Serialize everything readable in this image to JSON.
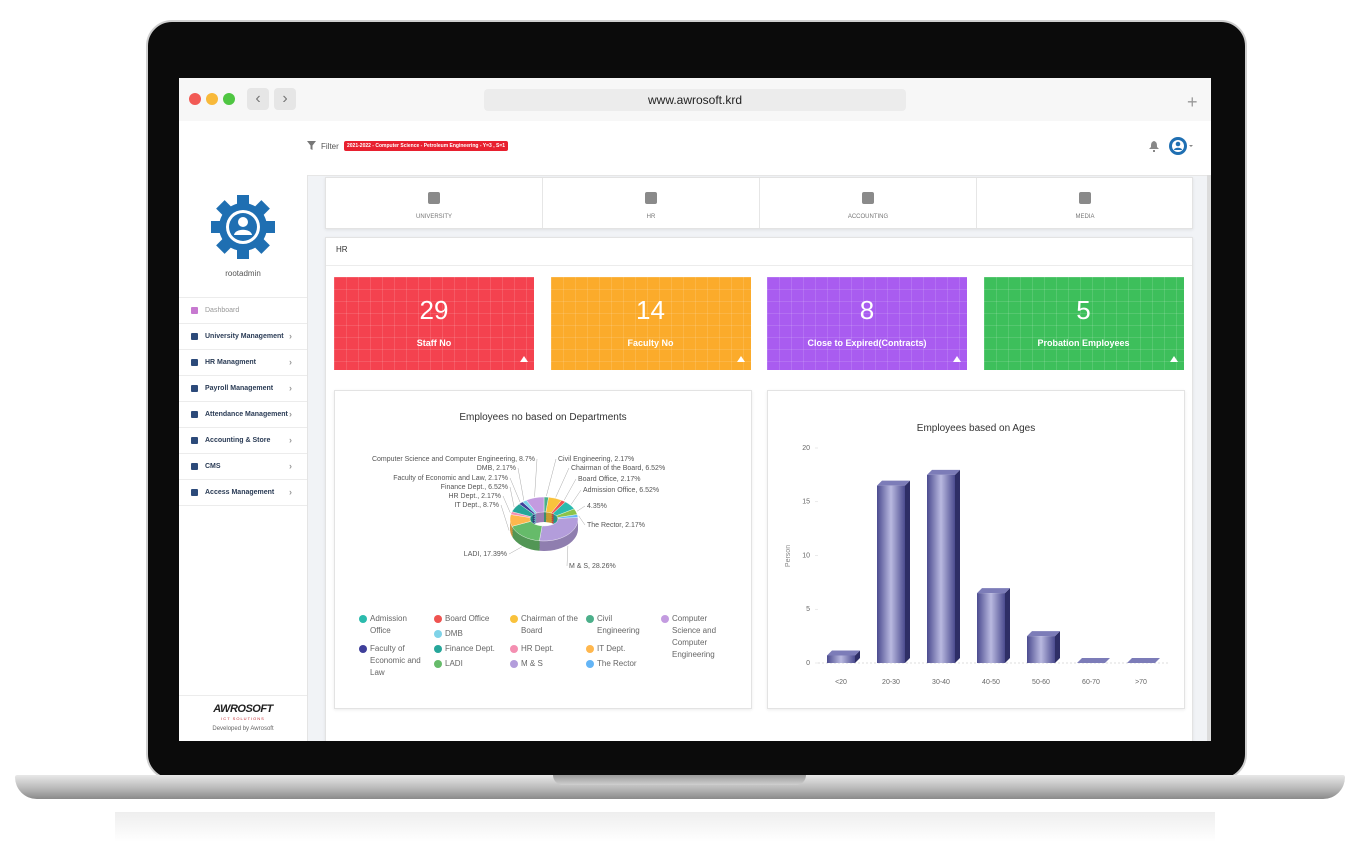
{
  "browser": {
    "url": "www.awrosoft.krd"
  },
  "header": {
    "filter_label": "Filter",
    "filter_value": "2021-2022 - Computer Science - Petroleum Engineering - Y=3 , S=1"
  },
  "sidebar": {
    "username": "rootadmin",
    "menu": [
      "Dashboard",
      "University Management",
      "HR Managment",
      "Payroll Management",
      "Attendance Management",
      "Accounting & Store",
      "CMS",
      "Access Management"
    ],
    "logo": "AWROSOFT",
    "logo_tagline": "ICT SOLUTIONS",
    "credit": "Developed by Awrosoft"
  },
  "tabs": [
    "UNIVERSITY",
    "HR",
    "ACCOUNTING",
    "MEDIA"
  ],
  "section_title": "HR",
  "stats": [
    {
      "value": 29,
      "label": "Staff No",
      "color": "#f4424f"
    },
    {
      "value": 14,
      "label": "Faculty No",
      "color": "#fbab2b"
    },
    {
      "value": 8,
      "label": "Close to Expired(Contracts)",
      "color": "#a95cf0"
    },
    {
      "value": 5,
      "label": "Probation Employees",
      "color": "#3dbf5b"
    }
  ],
  "chart_data": [
    {
      "type": "pie",
      "title": "Employees no based on Departments",
      "donut": true,
      "categories": [
        "Civil Engineering",
        "Chairman of the Board",
        "Board Office",
        "Admission Office",
        null,
        "The Rector",
        "M & S",
        "LADI",
        "IT Dept.",
        "HR Dept.",
        "Finance Dept.",
        "Faculty of Economic and Law",
        "DMB",
        "Computer Science and Computer Engineering"
      ],
      "values": [
        2.17,
        6.52,
        2.17,
        6.52,
        4.35,
        2.17,
        28.26,
        17.39,
        8.7,
        2.17,
        6.52,
        2.17,
        2.17,
        8.7
      ],
      "value_labels": [
        "Civil Engineering, 2.17%",
        "Chairman of the Board, 6.52%",
        "Board Office, 2.17%",
        "Admission Office, 6.52%",
        "4.35%",
        "The Rector, 2.17%",
        "M & S, 28.26%",
        "LADI, 17.39%",
        "IT Dept., 8.7%",
        "HR Dept., 2.17%",
        "Finance Dept., 6.52%",
        "Faculty of Economic and Law, 2.17%",
        "DMB, 2.17%",
        "Computer Science and Computer Engineering, 8.7%"
      ],
      "colors": [
        "#4caf8a",
        "#f9c23c",
        "#ef5350",
        "#2bbbad",
        "#8bc34a",
        "#64b5f6",
        "#b39ddb",
        "#66bb6a",
        "#ffb74d",
        "#f48fb1",
        "#26a69a",
        "#3f3f9a",
        "#7fd3e8",
        "#c39be0"
      ]
    },
    {
      "type": "bar",
      "title": "Employees based on Ages",
      "y_label": "Person",
      "categories": [
        "<20",
        "20-30",
        "30-40",
        "40-50",
        "50-60",
        "60-70",
        ">70"
      ],
      "values": [
        0.7,
        16.5,
        17.5,
        6.5,
        2.5,
        0,
        0
      ],
      "color": "#4b4b8f",
      "ylim": [
        0,
        20
      ],
      "yticks": [
        0,
        5,
        10,
        15,
        20
      ]
    }
  ]
}
